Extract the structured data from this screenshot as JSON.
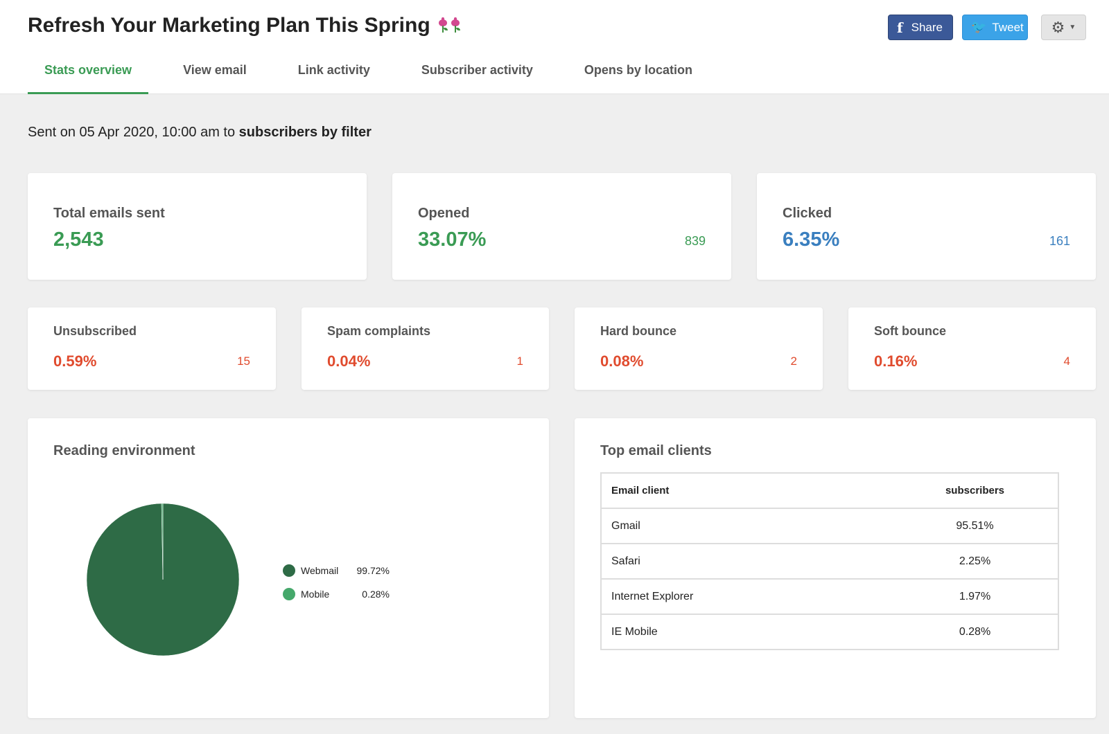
{
  "header": {
    "title": "Refresh Your Marketing Plan This Spring",
    "share_label": "Share",
    "tweet_label": "Tweet",
    "facebook_icon": "f",
    "twitter_icon": "🐦"
  },
  "tabs": [
    {
      "label": "Stats overview",
      "active": true
    },
    {
      "label": "View email"
    },
    {
      "label": "Link activity"
    },
    {
      "label": "Subscriber activity"
    },
    {
      "label": "Opens by location"
    }
  ],
  "sent": {
    "prefix": "Sent on 05 Apr 2020, 10:00 am to ",
    "target": "subscribers by filter"
  },
  "stats": {
    "total": {
      "label": "Total emails sent",
      "value": "2,543"
    },
    "opened": {
      "label": "Opened",
      "value": "33.07%",
      "count": "839"
    },
    "clicked": {
      "label": "Clicked",
      "value": "6.35%",
      "count": "161"
    },
    "unsubscribed": {
      "label": "Unsubscribed",
      "value": "0.59%",
      "count": "15"
    },
    "spam": {
      "label": "Spam complaints",
      "value": "0.04%",
      "count": "1"
    },
    "hard": {
      "label": "Hard bounce",
      "value": "0.08%",
      "count": "2"
    },
    "soft": {
      "label": "Soft bounce",
      "value": "0.16%",
      "count": "4"
    }
  },
  "reading": {
    "title": "Reading environment",
    "legend": [
      {
        "name": "Webmail",
        "value": "99.72%",
        "color": "#2e6b46"
      },
      {
        "name": "Mobile",
        "value": "0.28%",
        "color": "#45a86b"
      }
    ]
  },
  "chart_data": {
    "type": "pie",
    "title": "Reading environment",
    "categories": [
      "Webmail",
      "Mobile"
    ],
    "values": [
      99.72,
      0.28
    ],
    "colors": [
      "#2e6b46",
      "#45a86b"
    ]
  },
  "clients": {
    "title": "Top email clients",
    "col_client": "Email client",
    "col_subscribers": "subscribers",
    "rows": [
      {
        "name": "Gmail",
        "pct": "95.51%"
      },
      {
        "name": "Safari",
        "pct": "2.25%"
      },
      {
        "name": "Internet Explorer",
        "pct": "1.97%"
      },
      {
        "name": "IE Mobile",
        "pct": "0.28%"
      }
    ]
  }
}
